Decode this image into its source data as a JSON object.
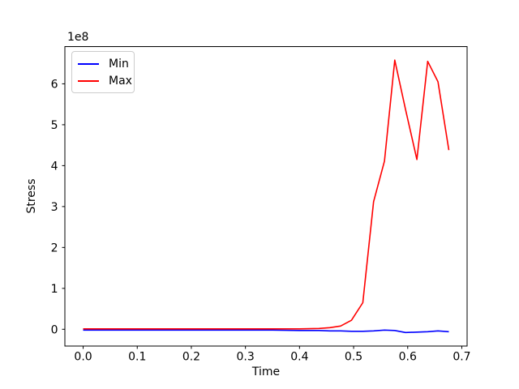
{
  "chart_data": {
    "type": "line",
    "title": "",
    "xlabel": "Time",
    "ylabel": "Stress",
    "offset_text": "1e8",
    "grid": false,
    "legend_position": "upper left",
    "xlim": [
      -0.0338,
      0.7098
    ],
    "ylim": [
      -41000000,
      691000000
    ],
    "xticks": {
      "values": [
        0.0,
        0.1,
        0.2,
        0.3,
        0.4,
        0.5,
        0.6,
        0.7
      ],
      "labels": [
        "0.0",
        "0.1",
        "0.2",
        "0.3",
        "0.4",
        "0.5",
        "0.6",
        "0.7"
      ]
    },
    "yticks": {
      "values": [
        0,
        100000000.0,
        200000000.0,
        300000000.0,
        400000000.0,
        500000000.0,
        600000000.0
      ],
      "labels": [
        "0",
        "1",
        "2",
        "3",
        "4",
        "5",
        "6"
      ]
    },
    "series": [
      {
        "name": "Min",
        "color": "#0000ff",
        "points": [
          [
            0.0,
            -2000000.0
          ],
          [
            0.05,
            -2000000.0
          ],
          [
            0.1,
            -2000000.0
          ],
          [
            0.15,
            -2000000.0
          ],
          [
            0.2,
            -2000000.0
          ],
          [
            0.25,
            -2000000.0
          ],
          [
            0.3,
            -2000000.0
          ],
          [
            0.35,
            -2000000.0
          ],
          [
            0.4,
            -3000000.0
          ],
          [
            0.436,
            -3000000.0
          ],
          [
            0.456,
            -4000000.0
          ],
          [
            0.476,
            -4000000.0
          ],
          [
            0.496,
            -5000000.0
          ],
          [
            0.517,
            -5000000.0
          ],
          [
            0.537,
            -4000000.0
          ],
          [
            0.557,
            -2000000.0
          ],
          [
            0.576,
            -3000000.0
          ],
          [
            0.596,
            -8000000.0
          ],
          [
            0.617,
            -7000000.0
          ],
          [
            0.637,
            -6000000.0
          ],
          [
            0.656,
            -4000000.0
          ],
          [
            0.676,
            -6000000.0
          ]
        ]
      },
      {
        "name": "Max",
        "color": "#ff0000",
        "points": [
          [
            0.0,
            1000000.0
          ],
          [
            0.05,
            1000000.0
          ],
          [
            0.1,
            1000000.0
          ],
          [
            0.15,
            1000000.0
          ],
          [
            0.2,
            1000000.0
          ],
          [
            0.25,
            1000000.0
          ],
          [
            0.3,
            1000000.0
          ],
          [
            0.35,
            1000000.0
          ],
          [
            0.4,
            1000000.0
          ],
          [
            0.436,
            2000000.0
          ],
          [
            0.456,
            4000000.0
          ],
          [
            0.476,
            8000000.0
          ],
          [
            0.496,
            22000000.0
          ],
          [
            0.517,
            65000000.0
          ],
          [
            0.537,
            312000000.0
          ],
          [
            0.557,
            411000000.0
          ],
          [
            0.576,
            658000000.0
          ],
          [
            0.596,
            537000000.0
          ],
          [
            0.617,
            415000000.0
          ],
          [
            0.637,
            655000000.0
          ],
          [
            0.656,
            605000000.0
          ],
          [
            0.676,
            438000000.0
          ]
        ]
      }
    ]
  }
}
